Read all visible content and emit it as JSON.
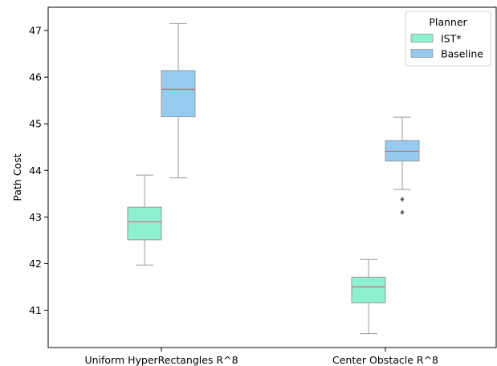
{
  "chart_data": {
    "type": "boxplot",
    "ylabel": "Path Cost",
    "xlabel": "",
    "ylim": [
      40.2,
      47.5
    ],
    "yticks": [
      41,
      42,
      43,
      44,
      45,
      46,
      47
    ],
    "grid": false,
    "categories": [
      "Uniform HyperRectangles R^8",
      "Center Obstacle R^8"
    ],
    "legend": {
      "title": "Planner",
      "placement": "top-right"
    },
    "series": [
      {
        "name": "IST*",
        "color": "#8df0d0",
        "boxes": [
          {
            "whisker_low": 41.97,
            "q1": 42.51,
            "median": 42.9,
            "q3": 43.21,
            "whisker_high": 43.9,
            "outliers": []
          },
          {
            "whisker_low": 40.5,
            "q1": 41.16,
            "median": 41.5,
            "q3": 41.71,
            "whisker_high": 42.09,
            "outliers": []
          }
        ]
      },
      {
        "name": "Baseline",
        "color": "#95cbee",
        "boxes": [
          {
            "whisker_low": 43.84,
            "q1": 45.15,
            "median": 45.74,
            "q3": 46.14,
            "whisker_high": 47.15,
            "outliers": []
          },
          {
            "whisker_low": 43.59,
            "q1": 44.2,
            "median": 44.41,
            "q3": 44.64,
            "whisker_high": 45.14,
            "outliers": [
              43.38,
              43.1
            ]
          }
        ]
      }
    ],
    "median_color": "#e06070",
    "whisker_color": "#999999"
  }
}
